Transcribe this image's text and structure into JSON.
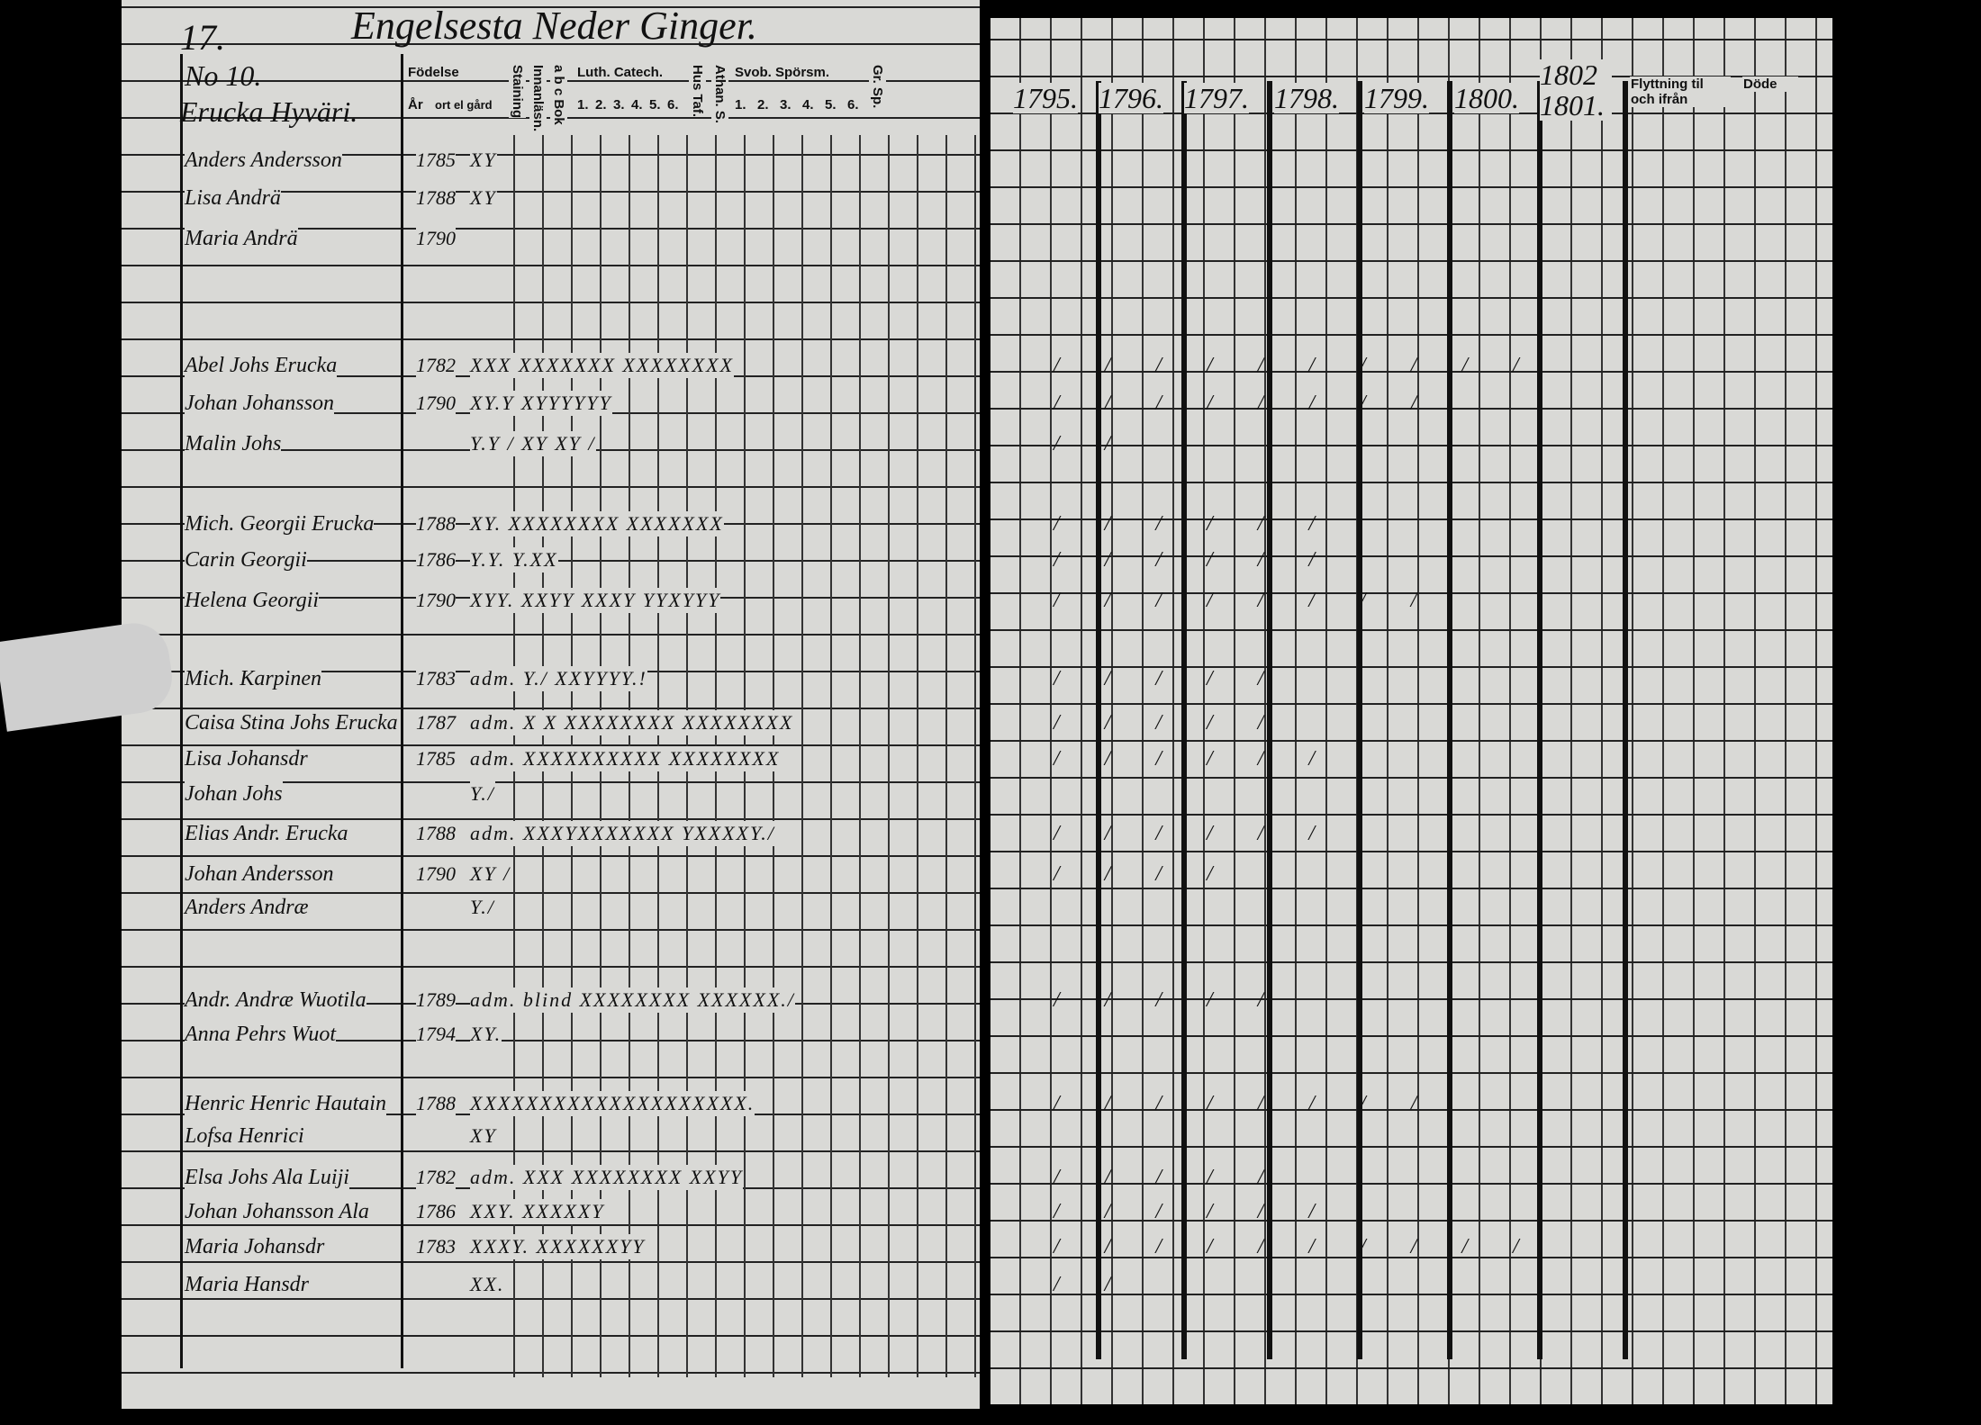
{
  "header": {
    "page_number": "17.",
    "parish_title": "Engelsesta Neder Ginger.",
    "household_no": "No 10.",
    "household_name": "Erucka Hyväri."
  },
  "left_columns": [
    "Födelse",
    "År",
    "ort el gård",
    "Staining",
    "Innanläsn.",
    "a b c Bok",
    "Luth. Catech.",
    "1.",
    "2.",
    "3.",
    "4.",
    "5.",
    "6.",
    "Hus Taf.",
    "Athan. S.",
    "Svob. Spörsm.",
    "1.",
    "2.",
    "3.",
    "4.",
    "5.",
    "6.",
    "Gr. Sp."
  ],
  "years": [
    "1795.",
    "1796.",
    "1797.",
    "1798.",
    "1799.",
    "1800.",
    "1802 1801."
  ],
  "right_columns": [
    "Flyttning til och ifrån",
    "Döde"
  ],
  "persons": [
    {
      "name": "Anders Andersson",
      "year": "1785",
      "marks": "XY",
      "rmarks": ""
    },
    {
      "name": "Lisa Andrä",
      "year": "1788",
      "marks": "XY",
      "rmarks": ""
    },
    {
      "name": "Maria Andrä",
      "year": "1790",
      "marks": "",
      "rmarks": ""
    },
    {
      "name": "Abel Johs Erucka",
      "year": "1782",
      "marks": "XXX XXXXXXX XXXXXXXX",
      "rmarks": "/ / / / / / / / / /"
    },
    {
      "name": "Johan Johansson",
      "year": "1790",
      "marks": "XY.Y XYYYYYY",
      "rmarks": "/ / / / / / / /"
    },
    {
      "name": "Malin Johs",
      "year": "",
      "marks": "Y.Y / XY XY /",
      "rmarks": "/ /"
    },
    {
      "name": "Mich. Georgii Erucka",
      "year": "1788",
      "marks": "XY. XXXXXXXX XXXXXXX",
      "rmarks": "/ / / / / /"
    },
    {
      "name": "Carin Georgii",
      "year": "1786",
      "marks": "Y.Y. Y.XX",
      "rmarks": "/ / / / / /"
    },
    {
      "name": "Helena Georgii",
      "year": "1790",
      "marks": "XYY. XXYY XXXY  YYXYYY",
      "rmarks": "/ / / / / / / /"
    },
    {
      "name": "Mich. Karpinen",
      "year": "1783",
      "marks": "adm. Y./ XXYYYY.!",
      "rmarks": "/ / / / /"
    },
    {
      "name": "Caisa Stina Johs Erucka",
      "year": "1787",
      "marks": "adm. X X XXXXXXXX XXXXXXXX",
      "rmarks": "/ / / / /"
    },
    {
      "name": "Lisa Johansdr",
      "year": "1785",
      "marks": "adm. XXXXXXXXXX XXXXXXXX",
      "rmarks": "/ / / / / /"
    },
    {
      "name": "Johan Johs",
      "year": "",
      "marks": "Y./",
      "rmarks": ""
    },
    {
      "name": "Elias Andr. Erucka",
      "year": "1788",
      "marks": "adm. XXXYXXXXXXX YXXXXY./",
      "rmarks": "/ / / / / /"
    },
    {
      "name": "Johan Andersson",
      "year": "1790",
      "marks": "XY /",
      "rmarks": "/ / / /"
    },
    {
      "name": "Anders Andræ",
      "year": "",
      "marks": "Y./",
      "rmarks": ""
    },
    {
      "name": "Andr. Andræ Wuotila",
      "year": "1789",
      "marks": "adm. blind XXXXXXXX XXXXXX./",
      "rmarks": "/ / / / /"
    },
    {
      "name": "Anna Pehrs Wuot",
      "year": "1794",
      "marks": "XY.",
      "rmarks": ""
    },
    {
      "name": "Henric Henric Hautain",
      "year": "1788",
      "marks": "XXXXXXXXXXXXXXXXXXXX.",
      "rmarks": "/ / / / / / / /"
    },
    {
      "name": "Lofsa Henrici",
      "year": "",
      "marks": "XY",
      "rmarks": ""
    },
    {
      "name": "Elsa Johs Ala Luiji",
      "year": "1782",
      "marks": "adm. XXX XXXXXXXX XXYY",
      "rmarks": "/ / / / /"
    },
    {
      "name": "Johan Johansson Ala",
      "year": "1786",
      "marks": "XXY. XXXXXY",
      "rmarks": "/ / / / / /"
    },
    {
      "name": "Maria Johansdr",
      "year": "1783",
      "marks": "XXXY. XXXXXXYY",
      "rmarks": "/ / / / / / / / / /"
    },
    {
      "name": "Maria Hansdr",
      "year": "",
      "marks": "XX.",
      "rmarks": "/ /"
    }
  ]
}
